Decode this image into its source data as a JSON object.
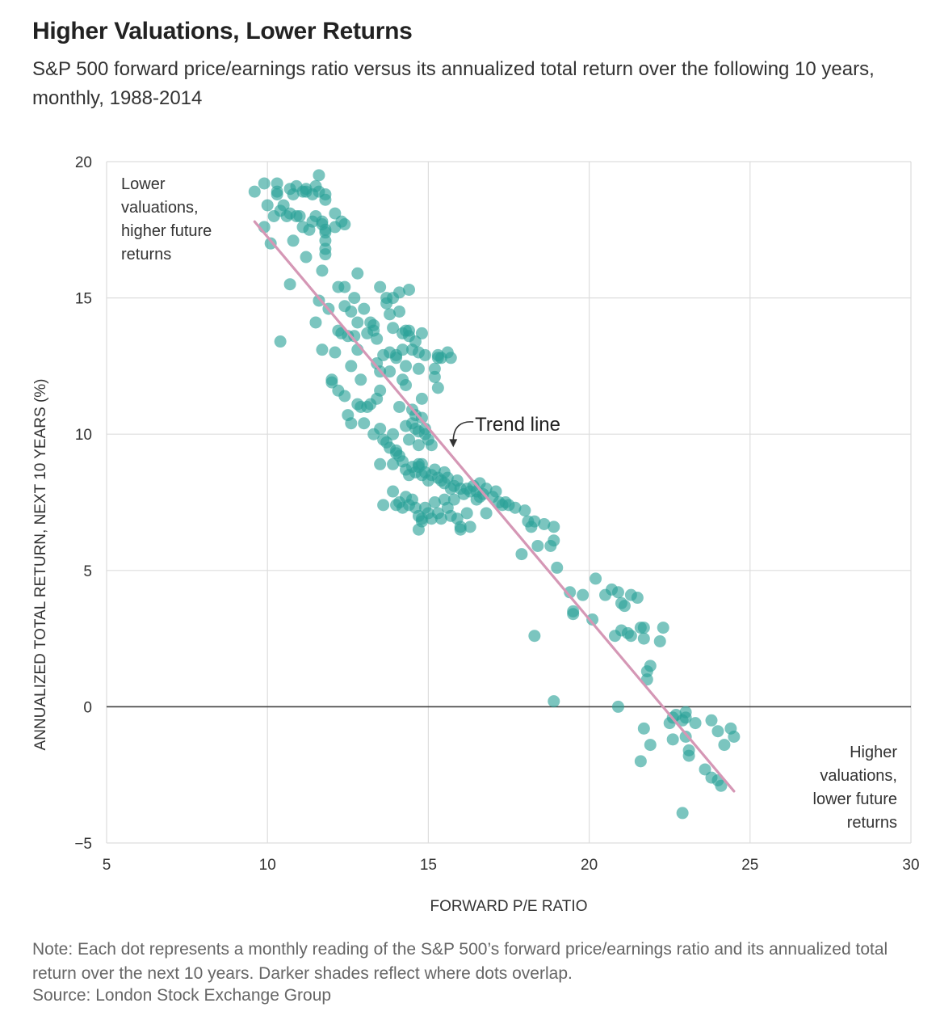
{
  "header": {
    "title": "Higher Valuations, Lower Returns",
    "subtitle": "S&P 500 forward price/earnings ratio versus its annualized total return over the following 10 years, monthly, 1988-2014"
  },
  "footer": {
    "note": "Note: Each dot represents a monthly reading of the S&P 500’s forward price/earnings ratio and its annualized total return over the next 10 years. Darker shades reflect where dots overlap.",
    "source": "Source: London Stock Exchange Group"
  },
  "colors": {
    "dot": "#2aa198",
    "trend": "#d597b5",
    "grid": "#dddddd",
    "zero_line": "#444444"
  },
  "chart_data": {
    "type": "scatter",
    "title": "Higher Valuations, Lower Returns",
    "xlabel": "FORWARD P/E RATIO",
    "ylabel": "ANNUALIZED TOTAL RETURN, NEXT 10 YEARS (%)",
    "xlim": [
      5,
      30
    ],
    "ylim": [
      -5,
      20
    ],
    "xticks": [
      5,
      10,
      15,
      20,
      25,
      30
    ],
    "yticks": [
      -5,
      0,
      5,
      10,
      15,
      20
    ],
    "xtick_labels": [
      "5",
      "10",
      "15",
      "20",
      "25",
      "30"
    ],
    "ytick_labels": [
      "−5",
      "0",
      "5",
      "10",
      "15",
      "20"
    ],
    "grid": true,
    "trend_line": {
      "label": "Trend line",
      "x": [
        9.6,
        24.5
      ],
      "y": [
        17.8,
        -3.1
      ]
    },
    "annotations": {
      "top_left": [
        "Lower",
        "valuations,",
        "higher future",
        "returns"
      ],
      "bottom_right": [
        "Higher",
        "valuations,",
        "lower future",
        "returns"
      ]
    },
    "points": [
      [
        9.6,
        18.9
      ],
      [
        9.9,
        19.2
      ],
      [
        10.0,
        18.4
      ],
      [
        10.3,
        19.2
      ],
      [
        10.3,
        18.9
      ],
      [
        10.3,
        18.8
      ],
      [
        10.5,
        18.4
      ],
      [
        10.6,
        18.0
      ],
      [
        10.7,
        19.0
      ],
      [
        10.8,
        18.8
      ],
      [
        10.9,
        19.1
      ],
      [
        11.0,
        18.0
      ],
      [
        11.1,
        18.9
      ],
      [
        11.2,
        19.0
      ],
      [
        11.2,
        18.9
      ],
      [
        11.4,
        18.8
      ],
      [
        11.5,
        19.1
      ],
      [
        11.6,
        19.5
      ],
      [
        11.6,
        18.9
      ],
      [
        11.8,
        18.6
      ],
      [
        11.8,
        18.8
      ],
      [
        10.2,
        18.0
      ],
      [
        10.4,
        18.2
      ],
      [
        10.7,
        18.1
      ],
      [
        10.9,
        18.0
      ],
      [
        11.1,
        17.6
      ],
      [
        11.3,
        17.5
      ],
      [
        11.4,
        17.8
      ],
      [
        11.5,
        18.0
      ],
      [
        11.7,
        17.7
      ],
      [
        11.8,
        17.5
      ],
      [
        11.8,
        17.4
      ],
      [
        11.8,
        17.1
      ],
      [
        11.8,
        16.8
      ],
      [
        11.8,
        16.6
      ],
      [
        11.7,
        17.8
      ],
      [
        12.1,
        18.1
      ],
      [
        12.1,
        17.6
      ],
      [
        12.3,
        17.8
      ],
      [
        12.4,
        17.7
      ],
      [
        9.9,
        17.6
      ],
      [
        10.1,
        17.0
      ],
      [
        10.8,
        17.1
      ],
      [
        11.2,
        16.5
      ],
      [
        11.7,
        16.0
      ],
      [
        10.7,
        15.5
      ],
      [
        10.4,
        13.4
      ],
      [
        11.5,
        14.1
      ],
      [
        11.6,
        14.9
      ],
      [
        11.7,
        13.1
      ],
      [
        11.9,
        14.6
      ],
      [
        12.0,
        12.0
      ],
      [
        12.1,
        13.0
      ],
      [
        12.2,
        13.8
      ],
      [
        12.2,
        15.4
      ],
      [
        12.3,
        13.7
      ],
      [
        12.4,
        14.7
      ],
      [
        12.4,
        15.4
      ],
      [
        12.5,
        13.6
      ],
      [
        12.6,
        14.5
      ],
      [
        12.6,
        12.5
      ],
      [
        12.7,
        15.0
      ],
      [
        12.7,
        13.6
      ],
      [
        12.8,
        15.9
      ],
      [
        12.8,
        14.1
      ],
      [
        12.8,
        13.1
      ],
      [
        12.9,
        12.0
      ],
      [
        13.0,
        14.6
      ],
      [
        13.1,
        13.7
      ],
      [
        13.2,
        14.1
      ],
      [
        13.3,
        14.0
      ],
      [
        13.3,
        13.8
      ],
      [
        13.4,
        13.5
      ],
      [
        13.4,
        12.6
      ],
      [
        13.5,
        12.3
      ],
      [
        13.5,
        15.4
      ],
      [
        13.6,
        12.9
      ],
      [
        13.7,
        15.0
      ],
      [
        13.7,
        14.8
      ],
      [
        13.8,
        14.4
      ],
      [
        13.8,
        13.0
      ],
      [
        13.8,
        12.3
      ],
      [
        13.9,
        15.0
      ],
      [
        13.9,
        13.9
      ],
      [
        14.0,
        12.8
      ],
      [
        14.0,
        12.9
      ],
      [
        14.1,
        15.2
      ],
      [
        14.1,
        14.5
      ],
      [
        14.2,
        13.1
      ],
      [
        14.2,
        13.7
      ],
      [
        14.3,
        13.8
      ],
      [
        14.3,
        12.5
      ],
      [
        14.4,
        15.3
      ],
      [
        14.4,
        13.8
      ],
      [
        14.4,
        13.6
      ],
      [
        14.5,
        13.1
      ],
      [
        14.6,
        13.4
      ],
      [
        14.7,
        13.0
      ],
      [
        14.7,
        12.4
      ],
      [
        14.8,
        13.7
      ],
      [
        14.9,
        12.9
      ],
      [
        15.2,
        12.4
      ],
      [
        15.3,
        12.9
      ],
      [
        15.3,
        12.8
      ],
      [
        15.4,
        12.8
      ],
      [
        15.6,
        13.0
      ],
      [
        15.7,
        12.8
      ],
      [
        15.2,
        12.1
      ],
      [
        15.3,
        11.7
      ],
      [
        12.0,
        11.9
      ],
      [
        12.2,
        11.6
      ],
      [
        12.4,
        11.4
      ],
      [
        12.5,
        10.7
      ],
      [
        12.6,
        10.4
      ],
      [
        12.8,
        11.1
      ],
      [
        12.9,
        11.0
      ],
      [
        13.0,
        10.4
      ],
      [
        13.1,
        11.0
      ],
      [
        13.2,
        11.1
      ],
      [
        13.3,
        10.0
      ],
      [
        13.4,
        11.3
      ],
      [
        13.5,
        11.6
      ],
      [
        13.5,
        10.2
      ],
      [
        13.6,
        9.8
      ],
      [
        13.7,
        9.7
      ],
      [
        13.8,
        9.5
      ],
      [
        13.9,
        10.0
      ],
      [
        14.0,
        9.3
      ],
      [
        14.1,
        11.0
      ],
      [
        14.2,
        12.0
      ],
      [
        14.3,
        11.8
      ],
      [
        14.3,
        10.3
      ],
      [
        14.4,
        9.8
      ],
      [
        14.5,
        10.4
      ],
      [
        14.5,
        10.9
      ],
      [
        14.6,
        10.7
      ],
      [
        14.6,
        10.2
      ],
      [
        14.7,
        10.1
      ],
      [
        14.7,
        9.6
      ],
      [
        14.8,
        11.3
      ],
      [
        14.8,
        10.6
      ],
      [
        14.9,
        10.2
      ],
      [
        14.9,
        10.0
      ],
      [
        15.0,
        9.8
      ],
      [
        15.1,
        9.6
      ],
      [
        13.9,
        8.9
      ],
      [
        14.0,
        9.4
      ],
      [
        14.1,
        9.2
      ],
      [
        14.2,
        9.0
      ],
      [
        14.3,
        8.7
      ],
      [
        14.4,
        8.5
      ],
      [
        14.5,
        8.8
      ],
      [
        14.6,
        8.6
      ],
      [
        14.7,
        8.9
      ],
      [
        14.7,
        8.8
      ],
      [
        14.8,
        8.9
      ],
      [
        14.8,
        8.5
      ],
      [
        14.9,
        8.6
      ],
      [
        15.0,
        8.3
      ],
      [
        15.1,
        8.5
      ],
      [
        15.2,
        8.7
      ],
      [
        15.3,
        8.4
      ],
      [
        15.4,
        8.3
      ],
      [
        15.5,
        8.6
      ],
      [
        15.5,
        8.2
      ],
      [
        15.6,
        8.4
      ],
      [
        15.7,
        8.0
      ],
      [
        15.8,
        8.1
      ],
      [
        15.9,
        8.3
      ],
      [
        16.0,
        8.0
      ],
      [
        16.1,
        7.8
      ],
      [
        16.2,
        8.0
      ],
      [
        16.3,
        7.9
      ],
      [
        16.4,
        8.1
      ],
      [
        16.5,
        7.9
      ],
      [
        16.6,
        8.2
      ],
      [
        16.7,
        7.8
      ],
      [
        16.8,
        8.0
      ],
      [
        13.5,
        8.9
      ],
      [
        13.9,
        7.9
      ],
      [
        14.0,
        7.4
      ],
      [
        14.1,
        7.5
      ],
      [
        14.2,
        7.3
      ],
      [
        14.3,
        7.7
      ],
      [
        14.4,
        7.4
      ],
      [
        14.5,
        7.6
      ],
      [
        14.6,
        7.3
      ],
      [
        14.7,
        7.0
      ],
      [
        14.8,
        6.9
      ],
      [
        14.9,
        7.3
      ],
      [
        15.0,
        7.1
      ],
      [
        15.1,
        6.9
      ],
      [
        15.2,
        7.5
      ],
      [
        15.3,
        7.1
      ],
      [
        15.4,
        6.9
      ],
      [
        15.5,
        7.6
      ],
      [
        15.6,
        7.3
      ],
      [
        15.7,
        7.0
      ],
      [
        15.8,
        7.6
      ],
      [
        15.9,
        6.9
      ],
      [
        16.0,
        6.5
      ],
      [
        16.0,
        6.6
      ],
      [
        16.2,
        7.1
      ],
      [
        16.3,
        6.6
      ],
      [
        16.5,
        7.6
      ],
      [
        16.6,
        7.7
      ],
      [
        16.8,
        7.1
      ],
      [
        17.0,
        7.7
      ],
      [
        17.1,
        7.9
      ],
      [
        17.2,
        7.5
      ],
      [
        17.3,
        7.4
      ],
      [
        17.4,
        7.5
      ],
      [
        17.5,
        7.4
      ],
      [
        17.7,
        7.3
      ],
      [
        14.7,
        6.5
      ],
      [
        14.8,
        6.8
      ],
      [
        13.6,
        7.4
      ],
      [
        18.0,
        7.2
      ],
      [
        18.1,
        6.8
      ],
      [
        18.2,
        6.6
      ],
      [
        18.3,
        6.8
      ],
      [
        18.4,
        5.9
      ],
      [
        18.6,
        6.7
      ],
      [
        18.8,
        5.9
      ],
      [
        18.9,
        6.1
      ],
      [
        18.9,
        6.6
      ],
      [
        17.9,
        5.6
      ],
      [
        19.0,
        5.1
      ],
      [
        19.4,
        4.2
      ],
      [
        19.5,
        3.4
      ],
      [
        19.5,
        3.5
      ],
      [
        19.8,
        4.1
      ],
      [
        20.1,
        3.2
      ],
      [
        20.2,
        4.7
      ],
      [
        20.5,
        4.1
      ],
      [
        20.7,
        4.3
      ],
      [
        20.9,
        4.2
      ],
      [
        21.0,
        3.8
      ],
      [
        21.1,
        3.7
      ],
      [
        20.8,
        2.6
      ],
      [
        21.0,
        2.8
      ],
      [
        21.2,
        2.7
      ],
      [
        21.3,
        2.6
      ],
      [
        21.3,
        4.1
      ],
      [
        21.5,
        4.0
      ],
      [
        21.6,
        2.9
      ],
      [
        21.7,
        2.9
      ],
      [
        21.7,
        2.5
      ],
      [
        21.8,
        1.3
      ],
      [
        21.9,
        1.5
      ],
      [
        21.8,
        1.0
      ],
      [
        22.2,
        2.4
      ],
      [
        22.3,
        2.9
      ],
      [
        18.3,
        2.6
      ],
      [
        18.9,
        0.2
      ],
      [
        20.9,
        0.0
      ],
      [
        22.5,
        -0.6
      ],
      [
        22.6,
        -0.4
      ],
      [
        22.7,
        -0.3
      ],
      [
        22.9,
        -0.5
      ],
      [
        23.0,
        -0.2
      ],
      [
        23.0,
        -0.4
      ],
      [
        23.3,
        -0.6
      ],
      [
        23.8,
        -0.5
      ],
      [
        24.0,
        -0.9
      ],
      [
        24.4,
        -0.8
      ],
      [
        24.5,
        -1.1
      ],
      [
        21.7,
        -0.8
      ],
      [
        21.9,
        -1.4
      ],
      [
        22.6,
        -1.2
      ],
      [
        23.0,
        -1.1
      ],
      [
        23.1,
        -1.6
      ],
      [
        23.1,
        -1.8
      ],
      [
        24.2,
        -1.4
      ],
      [
        21.6,
        -2.0
      ],
      [
        23.6,
        -2.3
      ],
      [
        23.8,
        -2.6
      ],
      [
        24.0,
        -2.7
      ],
      [
        24.1,
        -2.9
      ],
      [
        22.9,
        -3.9
      ]
    ]
  }
}
